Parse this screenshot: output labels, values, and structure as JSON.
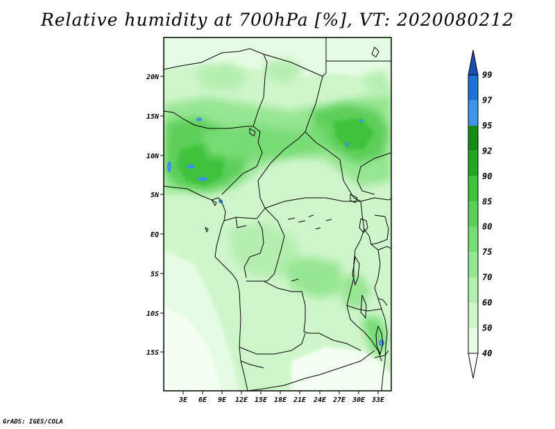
{
  "title": "Relative humidity at 700hPa [%], VT: 2020080212",
  "credit": "GrADS: IGES/COLA",
  "map": {
    "lat_labels": [
      "20N",
      "15N",
      "10N",
      "5N",
      "EQ",
      "5S",
      "10S",
      "15S"
    ],
    "lon_labels": [
      "3E",
      "6E",
      "9E",
      "12E",
      "15E",
      "18E",
      "21E",
      "24E",
      "27E",
      "30E",
      "33E"
    ]
  },
  "legend": {
    "levels": [
      "40",
      "50",
      "60",
      "70",
      "75",
      "80",
      "85",
      "90",
      "92",
      "95",
      "97",
      "99"
    ],
    "colors": [
      "#ffffff",
      "#e6fbe4",
      "#cff6cb",
      "#b4efaf",
      "#96e692",
      "#78dc74",
      "#5ccf58",
      "#3fc23c",
      "#22a622",
      "#138b14",
      "#3f93e8",
      "#1e6fd6",
      "#1451b0"
    ]
  }
}
